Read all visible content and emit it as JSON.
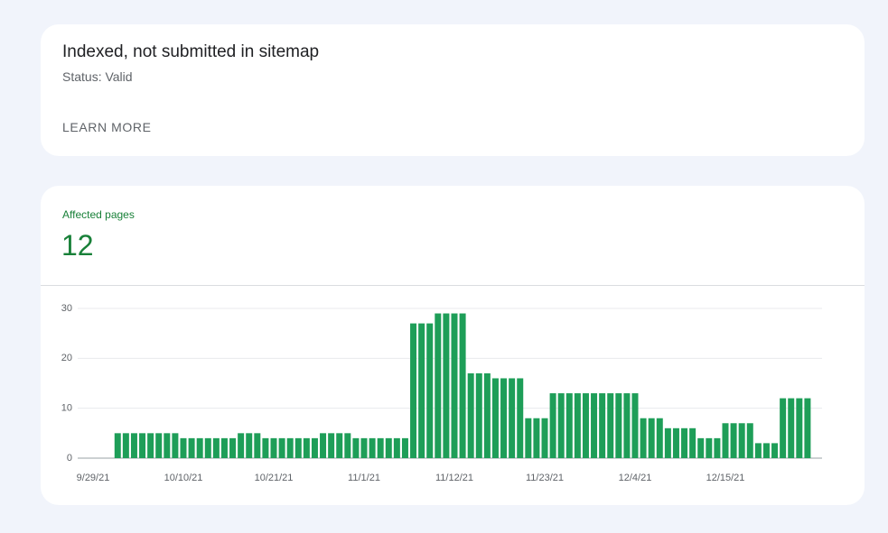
{
  "status_card": {
    "title": "Indexed, not submitted in sitemap",
    "status": "Status: Valid",
    "link": "LEARN MORE"
  },
  "summary": {
    "label": "Affected pages",
    "value": 12
  },
  "chart_data": {
    "type": "bar",
    "color": "#1e9e58",
    "categories": [
      "9/29/21",
      null,
      null,
      null,
      null,
      null,
      null,
      null,
      null,
      null,
      null,
      "10/10/21",
      null,
      null,
      null,
      null,
      null,
      null,
      null,
      null,
      null,
      null,
      "10/21/21",
      null,
      null,
      null,
      null,
      null,
      null,
      null,
      null,
      null,
      null,
      "11/1/21",
      null,
      null,
      null,
      null,
      null,
      null,
      null,
      null,
      null,
      null,
      "11/12/21",
      null,
      null,
      null,
      null,
      null,
      null,
      null,
      null,
      null,
      null,
      "11/23/21",
      null,
      null,
      null,
      null,
      null,
      null,
      null,
      null,
      null,
      null,
      "12/4/21",
      null,
      null,
      null,
      null,
      null,
      null,
      null,
      null,
      null,
      null,
      "12/15/21",
      null,
      null,
      null,
      null,
      null,
      null,
      null,
      null,
      null,
      null
    ],
    "values": [
      null,
      null,
      null,
      5,
      5,
      5,
      5,
      5,
      5,
      5,
      5,
      4,
      4,
      4,
      4,
      4,
      4,
      4,
      5,
      5,
      5,
      4,
      4,
      4,
      4,
      4,
      4,
      4,
      5,
      5,
      5,
      5,
      4,
      4,
      4,
      4,
      4,
      4,
      4,
      27,
      27,
      27,
      29,
      29,
      29,
      29,
      17,
      17,
      17,
      16,
      16,
      16,
      16,
      8,
      8,
      8,
      13,
      13,
      13,
      13,
      13,
      13,
      13,
      13,
      13,
      13,
      13,
      8,
      8,
      8,
      6,
      6,
      6,
      6,
      4,
      4,
      4,
      7,
      7,
      7,
      7,
      3,
      3,
      3,
      12,
      12,
      12,
      12
    ],
    "ylim": [
      0,
      30
    ],
    "yticks": [
      0,
      10,
      20,
      30
    ],
    "grid": true
  }
}
